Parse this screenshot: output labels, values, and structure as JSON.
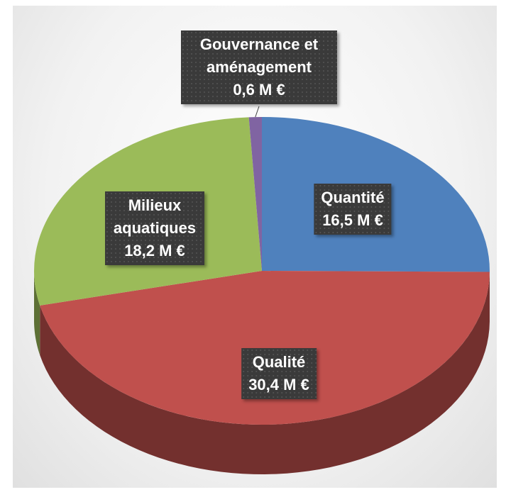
{
  "chart_data": {
    "type": "pie",
    "categories": [
      "Quantité",
      "Qualité",
      "Milieux aquatiques",
      "Gouvernance et aménagement"
    ],
    "values": [
      16.5,
      30.4,
      18.2,
      0.6
    ],
    "value_labels": [
      "16,5 M €",
      "30,4 M €",
      "18,2 M €",
      "0,6 M €"
    ],
    "colors": [
      "#4f81bd",
      "#c0504d",
      "#9bbb59",
      "#8064a2"
    ]
  }
}
